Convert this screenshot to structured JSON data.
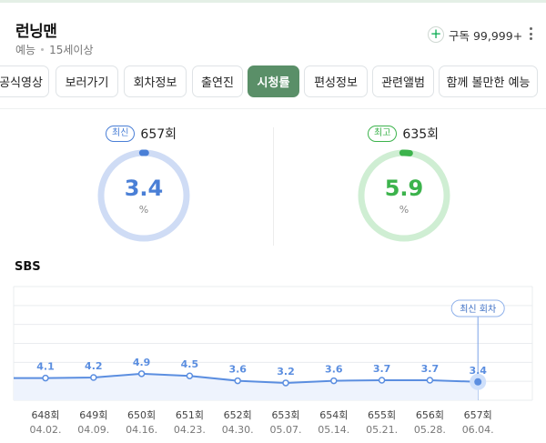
{
  "program": {
    "title": "런닝맨",
    "genre": "예능",
    "rating": "15세이상"
  },
  "subscribe": {
    "label": "구독 99,999+"
  },
  "tabs": [
    {
      "label": "공식영상",
      "active": false
    },
    {
      "label": "보러가기",
      "active": false
    },
    {
      "label": "회차정보",
      "active": false
    },
    {
      "label": "출연진",
      "active": false
    },
    {
      "label": "시청률",
      "active": true
    },
    {
      "label": "편성정보",
      "active": false
    },
    {
      "label": "관련앨범",
      "active": false
    },
    {
      "label": "함께 볼만한 예능",
      "active": false
    }
  ],
  "cards": [
    {
      "badge": "최신",
      "episode": "657회",
      "value": "3.4",
      "unit": "%",
      "color": "#4a7fd6",
      "track": "#cfdcf5",
      "badge_color": "#4a7fd6"
    },
    {
      "badge": "최고",
      "episode": "635회",
      "value": "5.9",
      "unit": "%",
      "color": "#3cb34c",
      "track": "#cfeed3",
      "badge_color": "#3cb34c"
    }
  ],
  "network": "SBS",
  "latest_tag": "최신 회차",
  "chart_data": {
    "type": "area",
    "categories": [
      "648회",
      "649회",
      "650회",
      "651회",
      "652회",
      "653회",
      "654회",
      "655회",
      "656회",
      "657회"
    ],
    "dates": [
      "04.02.",
      "04.09.",
      "04.16.",
      "04.23.",
      "04.30.",
      "05.07.",
      "05.14.",
      "05.21.",
      "05.28.",
      "06.04."
    ],
    "values": [
      4.1,
      4.2,
      4.9,
      4.5,
      3.6,
      3.2,
      3.6,
      3.7,
      3.7,
      3.4
    ],
    "labels": [
      "4.1",
      "4.2",
      "4.9",
      "4.5",
      "3.6",
      "3.2",
      "3.6",
      "3.7",
      "3.7",
      "3.4"
    ],
    "ylim": [
      0,
      21
    ],
    "line_color": "#5b8ee0",
    "fill_color": "#eef3fd",
    "grid": true
  }
}
